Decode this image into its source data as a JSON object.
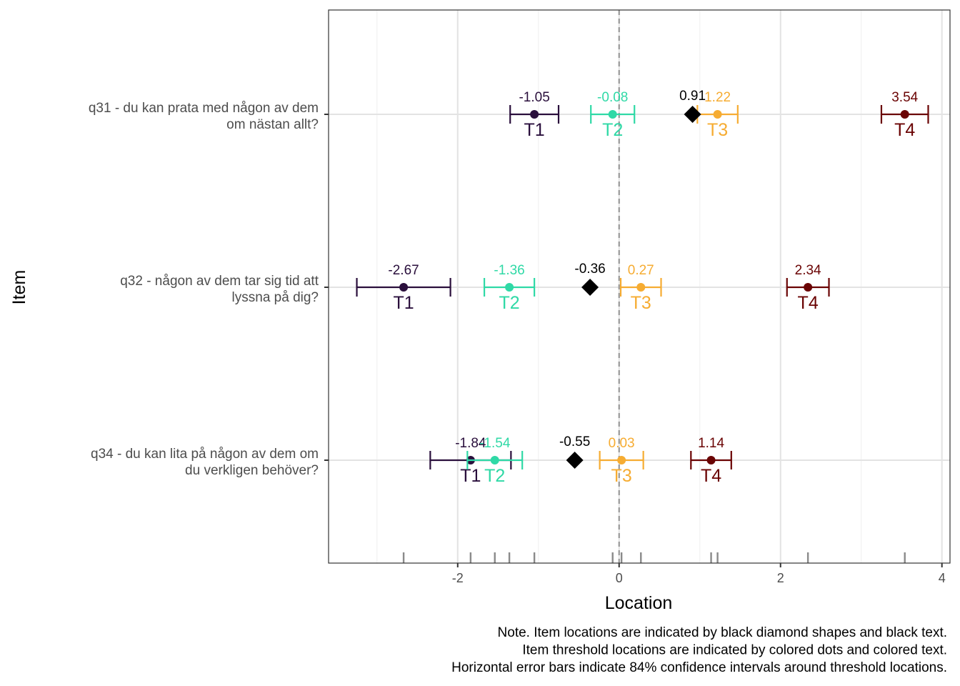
{
  "chart_data": {
    "type": "scatter",
    "xlabel": "Location",
    "ylabel": "Item",
    "xlim": [
      -3.6,
      4.1
    ],
    "x_ticks": [
      -2,
      0,
      2,
      4
    ],
    "x_tick_labels": [
      "-2",
      "0",
      "2",
      "4"
    ],
    "grid": true,
    "reference_line_x": 0,
    "threshold_colors": {
      "T1": "#2a0f3c",
      "T2": "#2fd9a6",
      "T3": "#f6ac32",
      "T4": "#6a0303"
    },
    "item_marker_color": "#000000",
    "items": [
      {
        "label_lines": [
          "q31 - du kan prata med någon av dem",
          "om nästan allt?"
        ],
        "location": 0.91,
        "location_label": "0.91",
        "thresholds": [
          {
            "name": "T1",
            "value": -1.05,
            "value_label": "-1.05",
            "ci": [
              -1.35,
              -0.75
            ]
          },
          {
            "name": "T2",
            "value": -0.08,
            "value_label": "-0.08",
            "ci": [
              -0.35,
              0.19
            ]
          },
          {
            "name": "T3",
            "value": 1.22,
            "value_label": "1.22",
            "ci": [
              0.97,
              1.47
            ]
          },
          {
            "name": "T4",
            "value": 3.54,
            "value_label": "3.54",
            "ci": [
              3.25,
              3.83
            ]
          }
        ]
      },
      {
        "label_lines": [
          "q32 - någon av dem tar sig tid att",
          "lyssna på dig?"
        ],
        "location": -0.36,
        "location_label": "-0.36",
        "thresholds": [
          {
            "name": "T1",
            "value": -2.67,
            "value_label": "-2.67",
            "ci": [
              -3.25,
              -2.09
            ]
          },
          {
            "name": "T2",
            "value": -1.36,
            "value_label": "-1.36",
            "ci": [
              -1.67,
              -1.05
            ]
          },
          {
            "name": "T3",
            "value": 0.27,
            "value_label": "0.27",
            "ci": [
              0.02,
              0.52
            ]
          },
          {
            "name": "T4",
            "value": 2.34,
            "value_label": "2.34",
            "ci": [
              2.08,
              2.6
            ]
          }
        ]
      },
      {
        "label_lines": [
          "q34 - du kan lita på någon av dem om",
          "du verkligen behöver?"
        ],
        "location": -0.55,
        "location_label": "-0.55",
        "thresholds": [
          {
            "name": "T1",
            "value": -1.84,
            "value_label": "-1.84",
            "ci": [
              -2.34,
              -1.34
            ]
          },
          {
            "name": "T2",
            "value": -1.54,
            "value_label": "-1.54",
            "ci": [
              -1.88,
              -1.2
            ]
          },
          {
            "name": "T3",
            "value": 0.03,
            "value_label": "0.03",
            "ci": [
              -0.24,
              0.3
            ]
          },
          {
            "name": "T4",
            "value": 1.14,
            "value_label": "1.14",
            "ci": [
              0.89,
              1.39
            ]
          }
        ]
      }
    ],
    "note_lines": [
      "Note. Item locations are indicated by black diamond shapes and black text.",
      "Item threshold locations are indicated by colored dots and colored text.",
      "Horizontal error bars indicate 84% confidence intervals around threshold locations."
    ]
  }
}
